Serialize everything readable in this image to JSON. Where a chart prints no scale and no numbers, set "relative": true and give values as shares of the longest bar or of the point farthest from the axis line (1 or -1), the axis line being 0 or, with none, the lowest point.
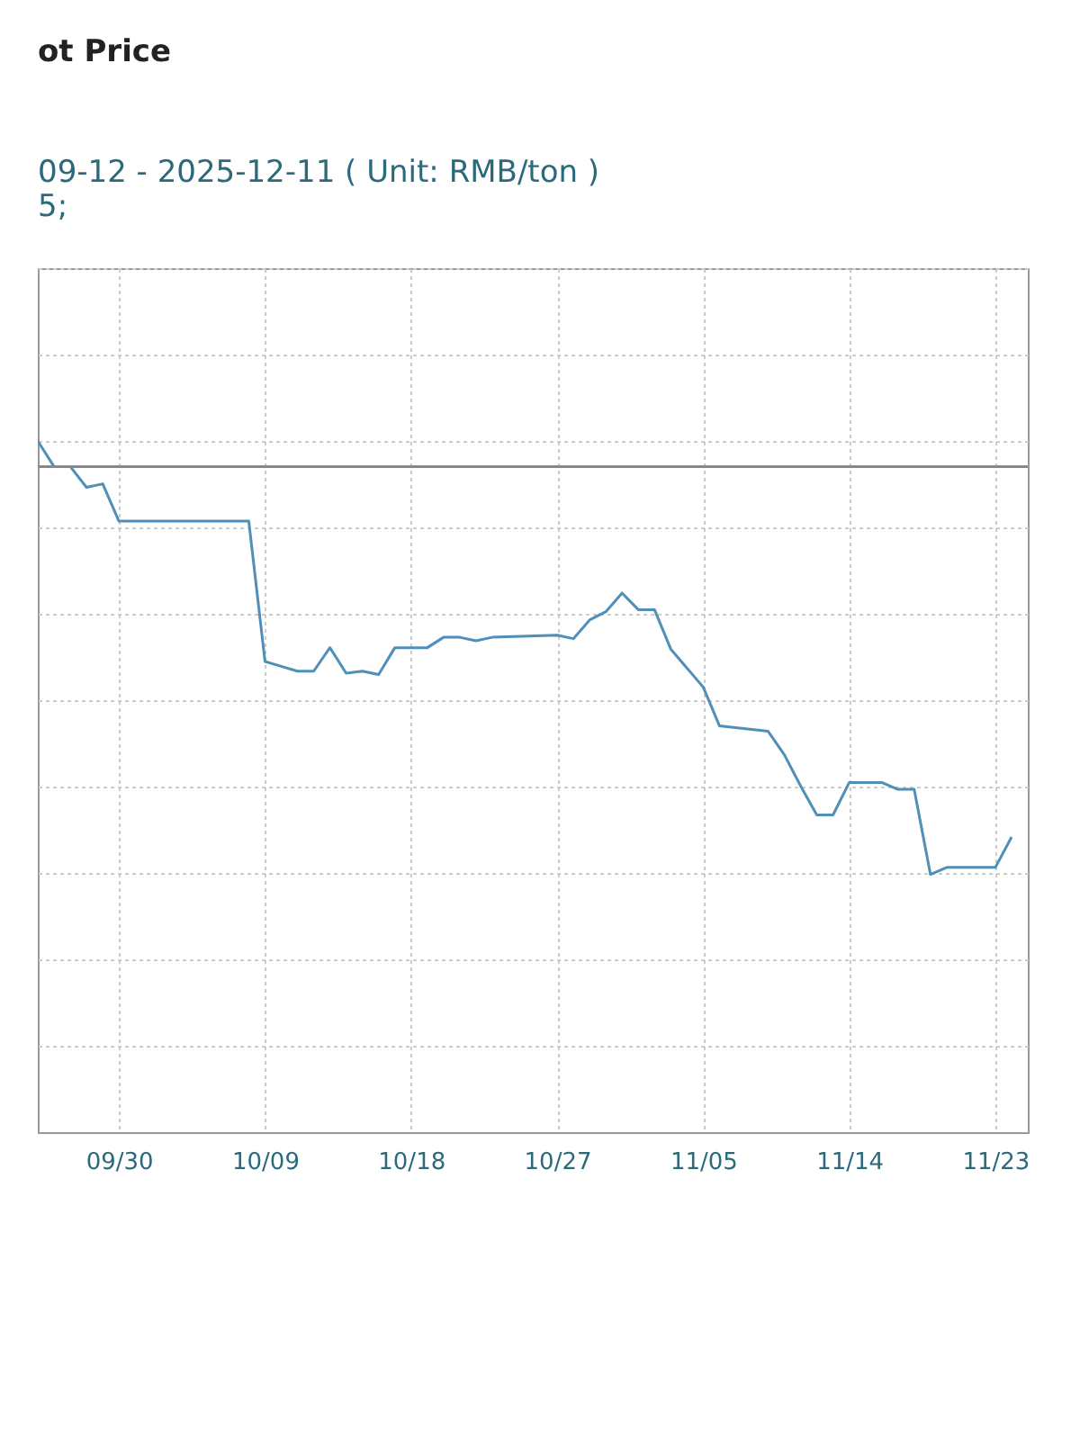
{
  "chart_data": {
    "type": "line",
    "title": "ot Price",
    "subtitle": "09-12 - 2025-12-11    ( Unit: RMB/ton )",
    "annotations": [
      "5;"
    ],
    "relative": true,
    "x": [
      "2025-09-25",
      "2025-09-26",
      "2025-09-27",
      "2025-09-28",
      "2025-09-29",
      "2025-09-30",
      "2025-10-08",
      "2025-10-09",
      "2025-10-10",
      "2025-10-11",
      "2025-10-12",
      "2025-10-13",
      "2025-10-14",
      "2025-10-15",
      "2025-10-16",
      "2025-10-17",
      "2025-10-19",
      "2025-10-20",
      "2025-10-21",
      "2025-10-22",
      "2025-10-23",
      "2025-10-27",
      "2025-10-28",
      "2025-10-29",
      "2025-10-30",
      "2025-10-31",
      "2025-11-01",
      "2025-11-02",
      "2025-11-03",
      "2025-11-05",
      "2025-11-06",
      "2025-11-09",
      "2025-11-10",
      "2025-11-11",
      "2025-11-12",
      "2025-11-13",
      "2025-11-14",
      "2025-11-16",
      "2025-11-17",
      "2025-11-18",
      "2025-11-19",
      "2025-11-20",
      "2025-11-23",
      "2025-11-24"
    ],
    "series": [
      {
        "color": "#4f8fb8",
        "values": [
          1.0,
          0.963,
          0.963,
          0.933,
          0.938,
          0.884,
          0.884,
          0.681,
          0.674,
          0.667,
          0.667,
          0.701,
          0.664,
          0.667,
          0.662,
          0.701,
          0.701,
          0.716,
          0.716,
          0.711,
          0.716,
          0.719,
          0.714,
          0.741,
          0.753,
          0.78,
          0.756,
          0.756,
          0.699,
          0.644,
          0.588,
          0.58,
          0.546,
          0.501,
          0.459,
          0.459,
          0.506,
          0.506,
          0.496,
          0.496,
          0.373,
          0.383,
          0.383,
          0.427
        ]
      }
    ],
    "xlim": [
      "2025-09-25",
      "2025-11-25"
    ],
    "xticks": [
      {
        "value": "2025-09-30",
        "label": "09/30"
      },
      {
        "value": "2025-10-09",
        "label": "10/09"
      },
      {
        "value": "2025-10-18",
        "label": "10/18"
      },
      {
        "value": "2025-10-27",
        "label": "10/27"
      },
      {
        "value": "2025-11-05",
        "label": "11/05"
      },
      {
        "value": "2025-11-14",
        "label": "11/14"
      },
      {
        "value": "2025-11-23",
        "label": "11/23"
      }
    ],
    "ref_lines": [
      {
        "axis": "y",
        "value": 0.963,
        "color": "#888888"
      }
    ],
    "grid": true,
    "marker": "none",
    "line_style": "solid"
  }
}
